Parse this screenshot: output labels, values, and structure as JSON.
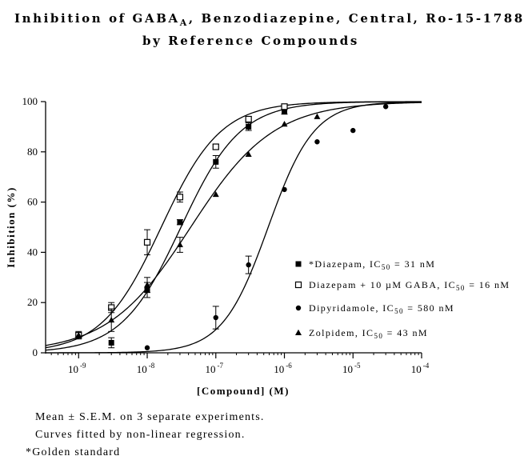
{
  "chart_data": {
    "type": "scatter",
    "title_lines": [
      "Inhibition of GABA",
      "A",
      ", Benzodiazepine, Central, Ro-15-1788",
      "by Reference Compounds"
    ],
    "xlabel": "[Compound] (M)",
    "ylabel": "Inhibition (%)",
    "xscale": "log",
    "xlim": [
      3.3e-10,
      0.0001
    ],
    "ylim": [
      0,
      100
    ],
    "yticks": [
      "0",
      "20",
      "40",
      "60",
      "80",
      "100"
    ],
    "xticks": [
      {
        "value": 1e-09,
        "base": "10",
        "exp": "-9"
      },
      {
        "value": 1e-08,
        "base": "10",
        "exp": "-8"
      },
      {
        "value": 1e-07,
        "base": "10",
        "exp": "-7"
      },
      {
        "value": 1e-06,
        "base": "10",
        "exp": "-6"
      },
      {
        "value": 1e-05,
        "base": "10",
        "exp": "-5"
      },
      {
        "value": 0.0001,
        "base": "10",
        "exp": "-4"
      }
    ],
    "legend_position": "right",
    "series": [
      {
        "marker": "square-filled",
        "label_pre": "*Diazepam, IC",
        "label_sub": "50",
        "label_post": " = 31 nM",
        "ic50": 3.1e-08,
        "hill": 1.0,
        "points": [
          {
            "x": 3e-09,
            "y": 4,
            "err": 2
          },
          {
            "x": 1e-08,
            "y": 25,
            "err": 3
          },
          {
            "x": 3e-08,
            "y": 52,
            "err": 1
          },
          {
            "x": 1e-07,
            "y": 76,
            "err": 2.5
          },
          {
            "x": 3e-07,
            "y": 90,
            "err": 1.5
          },
          {
            "x": 1e-06,
            "y": 96,
            "err": 1
          }
        ]
      },
      {
        "marker": "square-open",
        "label_pre": "Diazepam + 10 µM GABA, IC",
        "label_sub": "50",
        "label_post": " = 16 nM",
        "ic50": 1.6e-08,
        "hill": 1.0,
        "points": [
          {
            "x": 1e-09,
            "y": 7,
            "err": 1
          },
          {
            "x": 3e-09,
            "y": 18,
            "err": 2
          },
          {
            "x": 1e-08,
            "y": 44,
            "err": 5
          },
          {
            "x": 3e-08,
            "y": 62,
            "err": 2
          },
          {
            "x": 1e-07,
            "y": 82,
            "err": 1
          },
          {
            "x": 3e-07,
            "y": 93,
            "err": 1
          },
          {
            "x": 1e-06,
            "y": 98,
            "err": 0.5
          }
        ]
      },
      {
        "marker": "circle-filled",
        "label_pre": "Dipyridamole, IC",
        "label_sub": "50",
        "label_post": " = 580 nM",
        "ic50": 5.8e-07,
        "hill": 1.3,
        "points": [
          {
            "x": 1e-08,
            "y": 2,
            "err": 0
          },
          {
            "x": 1e-07,
            "y": 14,
            "err": 4.5
          },
          {
            "x": 3e-07,
            "y": 35,
            "err": 3.5
          },
          {
            "x": 1e-06,
            "y": 65,
            "err": 0
          },
          {
            "x": 3e-06,
            "y": 84,
            "err": 0
          },
          {
            "x": 1e-05,
            "y": 88.5,
            "err": 0
          },
          {
            "x": 3e-05,
            "y": 98,
            "err": 0
          }
        ]
      },
      {
        "marker": "triangle-filled",
        "label_pre": "Zolpidem, IC",
        "label_sub": "50",
        "label_post": " = 43 nM",
        "ic50": 4.3e-08,
        "hill": 0.72,
        "points": [
          {
            "x": 1e-09,
            "y": 7,
            "err": 1.5
          },
          {
            "x": 3e-09,
            "y": 13,
            "err": 4.5
          },
          {
            "x": 1e-08,
            "y": 27,
            "err": 3
          },
          {
            "x": 3e-08,
            "y": 43,
            "err": 3
          },
          {
            "x": 1e-07,
            "y": 63,
            "err": 0
          },
          {
            "x": 3e-07,
            "y": 79,
            "err": 0
          },
          {
            "x": 1e-06,
            "y": 91,
            "err": 0
          },
          {
            "x": 3e-06,
            "y": 94,
            "err": 0
          }
        ]
      }
    ]
  },
  "notes": [
    "Mean ± S.E.M. on 3 separate experiments.",
    "Curves fitted by non-linear regression.",
    "*Golden standard"
  ]
}
